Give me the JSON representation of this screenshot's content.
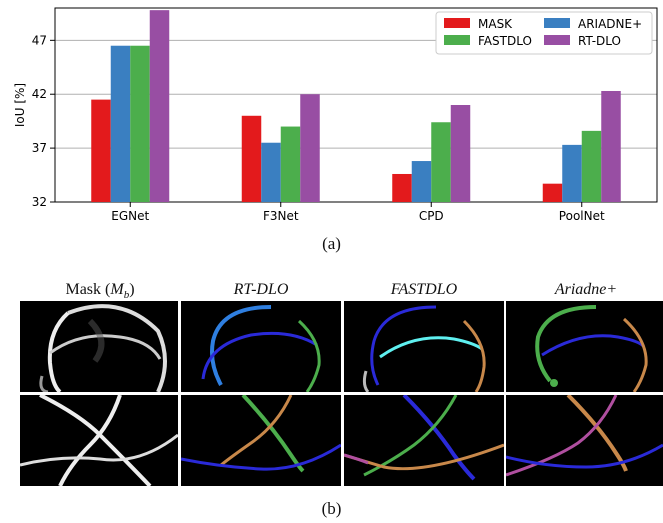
{
  "chart_data": {
    "type": "bar",
    "ylabel": "IoU [%]",
    "ylim": [
      32,
      50
    ],
    "yticks": [
      32,
      37,
      42,
      47
    ],
    "categories": [
      "EGNet",
      "F3Net",
      "CPD",
      "PoolNet"
    ],
    "series": [
      {
        "name": "MASK",
        "color": "#e31a1c",
        "values": [
          41.5,
          40.0,
          34.6,
          33.7
        ]
      },
      {
        "name": "ARIADNE+",
        "color": "#3a7fc1",
        "values": [
          46.5,
          37.5,
          35.8,
          37.3
        ]
      },
      {
        "name": "FASTDLO",
        "color": "#4cae4c",
        "values": [
          46.5,
          39.0,
          39.4,
          38.6
        ]
      },
      {
        "name": "RT-DLO",
        "color": "#984ea3",
        "values": [
          49.8,
          42.0,
          41.0,
          42.3
        ]
      }
    ],
    "grid": "horizontal",
    "legend_position": "top-right"
  },
  "captions": {
    "a": "(a)",
    "b": "(b)"
  },
  "panels": {
    "mask": {
      "prefix": "Mask (",
      "symbol": "M",
      "sub": "b",
      "suffix": ")"
    },
    "rtdlo": "RT-DLO",
    "fastdlo": "FASTDLO",
    "ariadne": "Ariadne+"
  }
}
